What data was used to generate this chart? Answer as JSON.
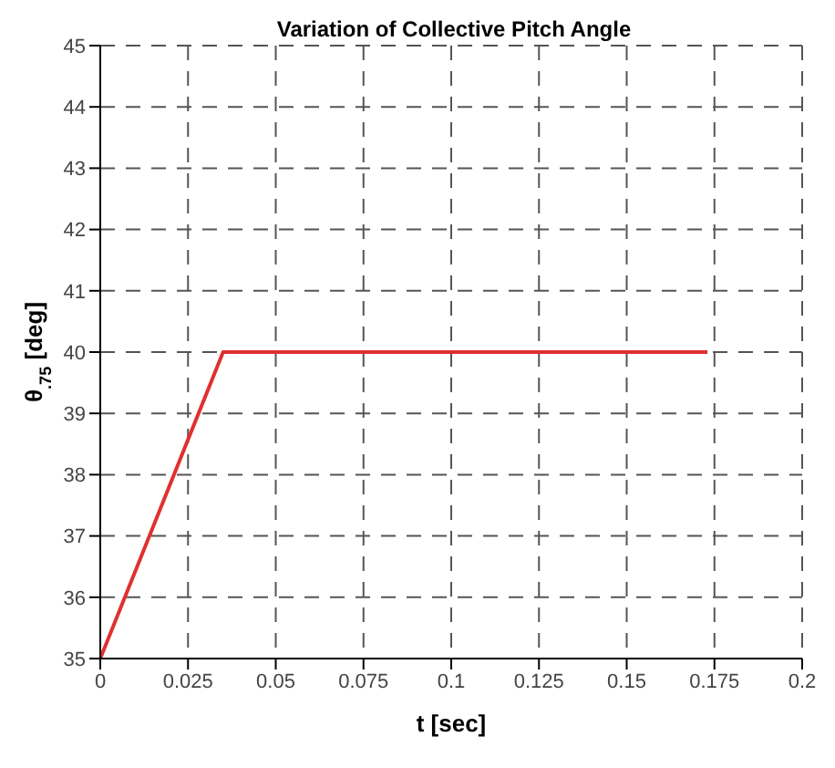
{
  "chart_data": {
    "type": "line",
    "title": "Variation of Collective Pitch Angle",
    "xlabel": "t [sec]",
    "ylabel": "θ$_{.75}$ [deg]",
    "series": [
      {
        "color": "#e03030",
        "x": [
          0,
          0.035,
          0.173
        ],
        "values": [
          35,
          40,
          40
        ]
      }
    ],
    "xlim": [
      0,
      0.2
    ],
    "xticks": [
      0,
      0.025,
      0.05,
      0.075,
      0.1,
      0.125,
      0.15,
      0.175,
      0.2
    ],
    "ylim": [
      35,
      45
    ],
    "yticks": [
      35,
      36,
      37,
      38,
      39,
      40,
      41,
      42,
      43,
      44,
      45
    ],
    "grid": true,
    "legend": false,
    "marker": "none",
    "line_style": "solid"
  }
}
